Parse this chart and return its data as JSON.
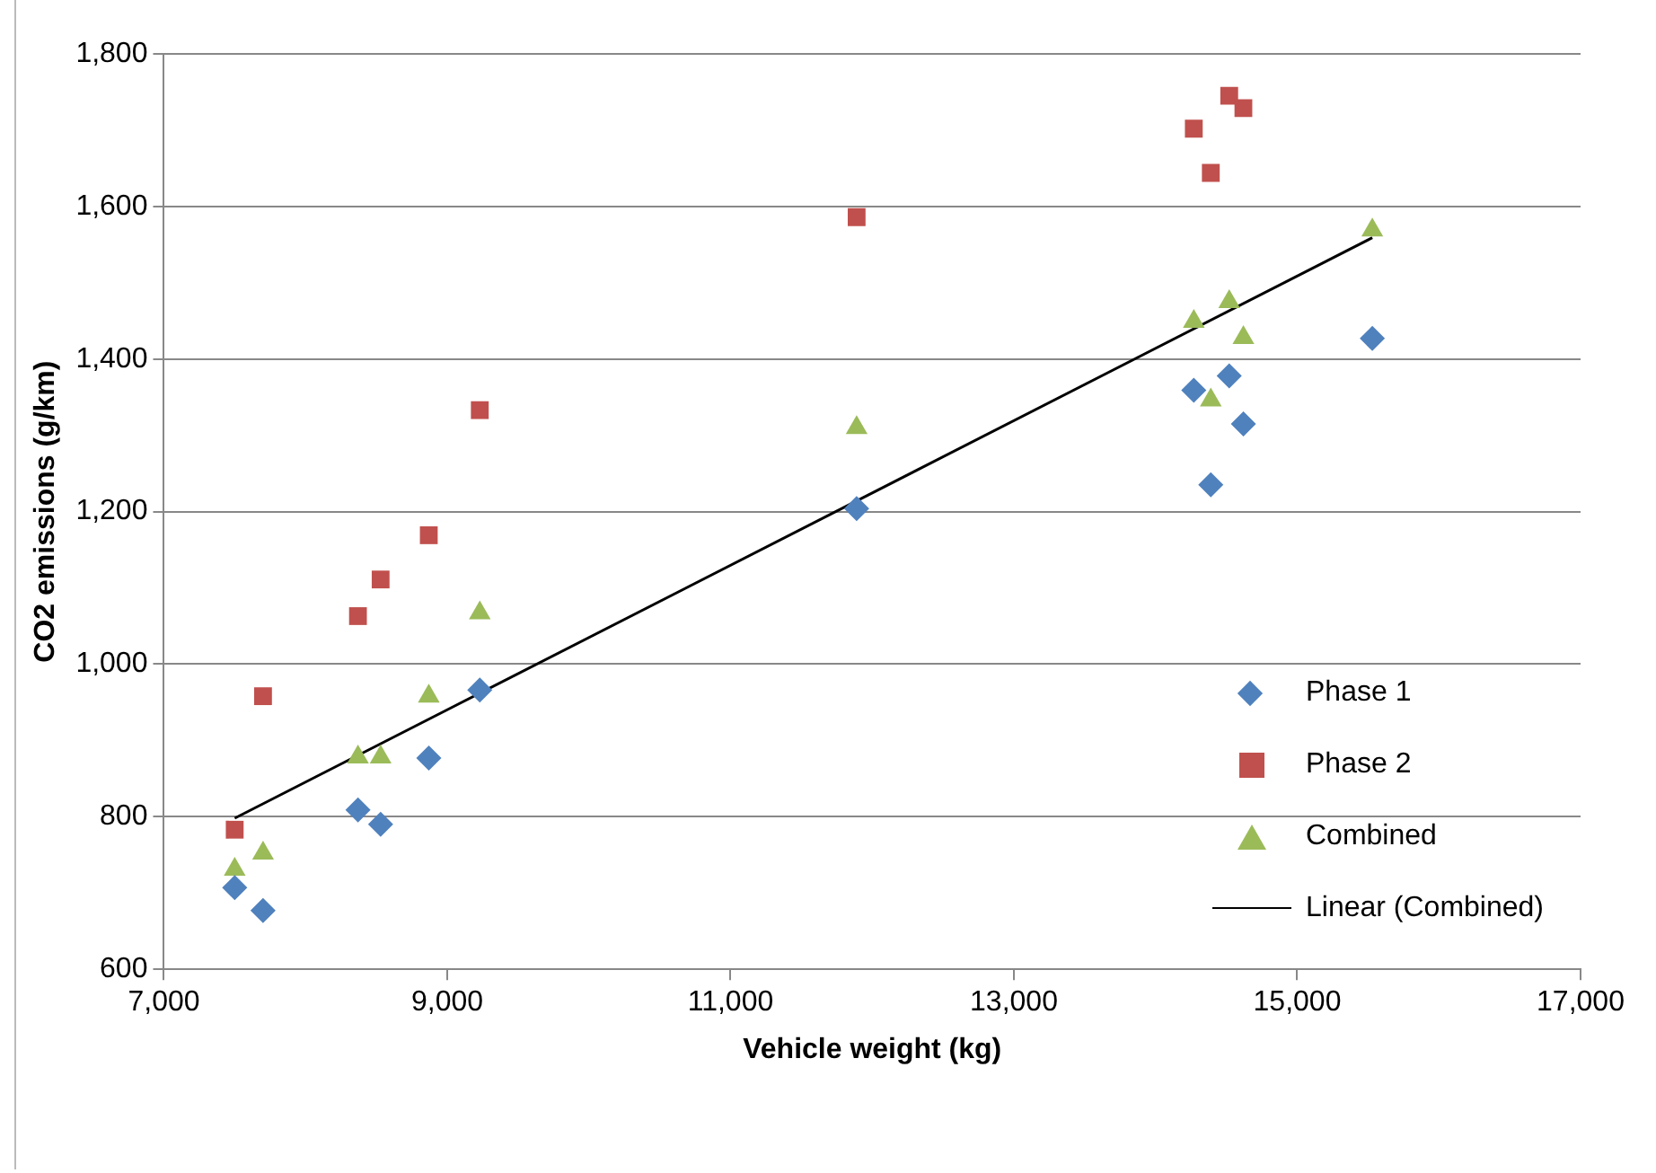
{
  "chart_data": {
    "type": "scatter",
    "xlabel": "Vehicle weight (kg)",
    "ylabel": "CO2 emissions (g/km)",
    "xlim": [
      7000,
      17000
    ],
    "xticks": [
      {
        "value": 7000,
        "label": "7,000"
      },
      {
        "value": 9000,
        "label": "9,000"
      },
      {
        "value": 11000,
        "label": "11,000"
      },
      {
        "value": 13000,
        "label": "13,000"
      },
      {
        "value": 15000,
        "label": "15,000"
      },
      {
        "value": 17000,
        "label": "17,000"
      }
    ],
    "ylim": [
      600,
      1800
    ],
    "yticks": [
      600,
      800,
      {
        "value": 1000,
        "label": "1,000"
      },
      {
        "value": 1200,
        "label": "1,200"
      },
      {
        "value": 1400,
        "label": "1,400"
      },
      {
        "value": 1600,
        "label": "1,600"
      },
      {
        "value": 1800,
        "label": "1,800"
      }
    ],
    "grid": "y",
    "legend": "right",
    "series": [
      {
        "name": "Phase 1",
        "color": "#4f81bd",
        "marker": "diamond",
        "x": [
          7500,
          7700,
          8370,
          8530,
          8870,
          9230,
          11890,
          14270,
          14390,
          14520,
          14620,
          15530
        ],
        "values": [
          707,
          677,
          809,
          790,
          877,
          966,
          1204,
          1359,
          1235,
          1378,
          1315,
          1427
        ]
      },
      {
        "name": "Phase 2",
        "color": "#c0504d",
        "marker": "square",
        "x": [
          7500,
          7700,
          8370,
          8530,
          8870,
          9230,
          11890,
          14270,
          14390,
          14520,
          14620
        ],
        "values": [
          783,
          958,
          1063,
          1111,
          1169,
          1333,
          1586,
          1702,
          1644,
          1745,
          1729
        ]
      },
      {
        "name": "Combined",
        "color": "#9bbb59",
        "marker": "triangle",
        "x": [
          7500,
          7700,
          8370,
          8530,
          8870,
          9230,
          11890,
          14270,
          14390,
          14520,
          14620,
          15530
        ],
        "values": [
          731,
          752,
          878,
          878,
          958,
          1067,
          1310,
          1449,
          1346,
          1475,
          1428,
          1569
        ]
      },
      {
        "name": "Linear (Combined)",
        "type": "line",
        "color": "#000000",
        "marker": "none",
        "x": [
          7500,
          15530
        ],
        "values": [
          798,
          1559
        ]
      }
    ]
  }
}
